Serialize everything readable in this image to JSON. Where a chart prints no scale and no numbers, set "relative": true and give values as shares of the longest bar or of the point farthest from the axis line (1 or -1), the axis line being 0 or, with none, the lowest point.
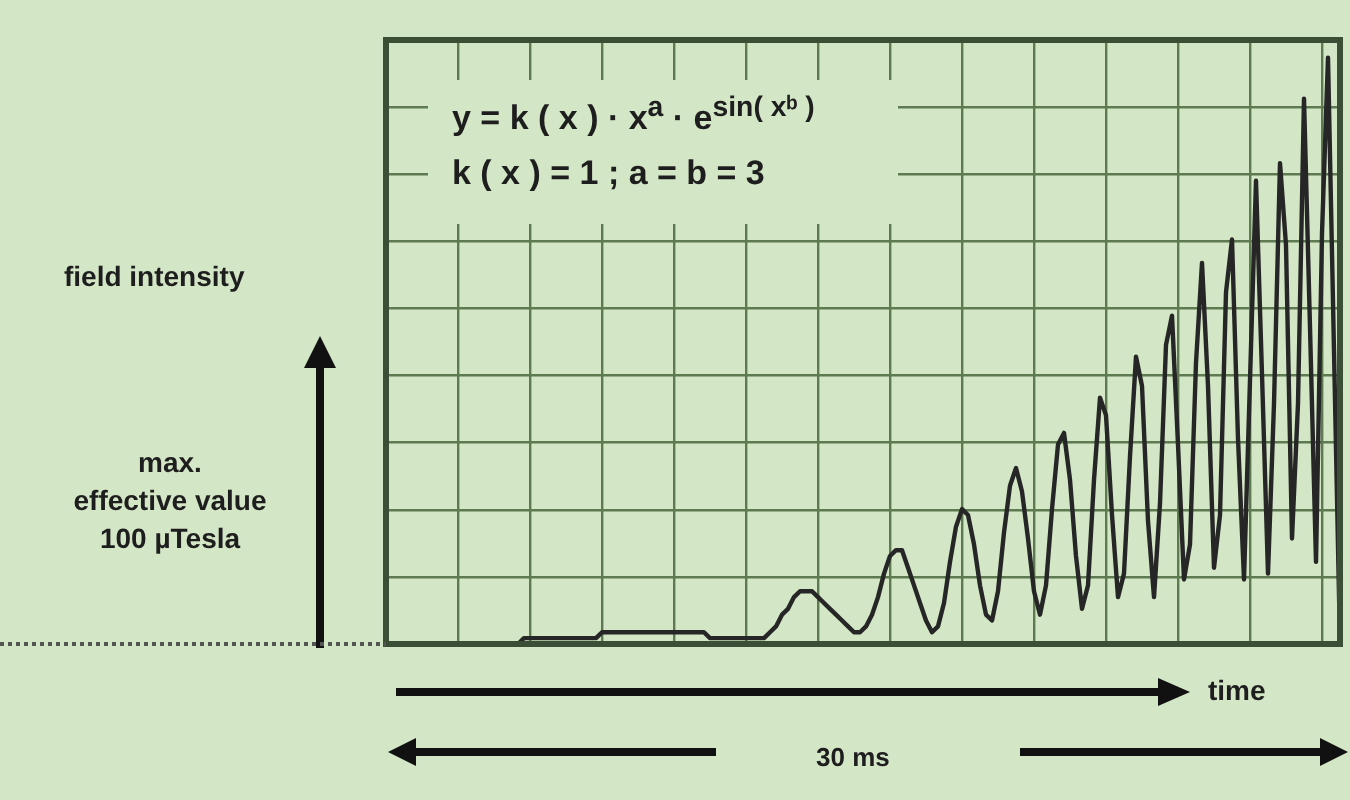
{
  "chart_data": {
    "type": "line",
    "relative": true,
    "xlabel": "time",
    "color": "#262626",
    "grid": true,
    "legend": false,
    "tick_labels": false,
    "marker": "none",
    "line_style": "solid",
    "annotations": [
      "y = k ( x ) · x$^{a}$ · e$^{sin( xᵇ )}$",
      "k ( x ) = 1 ; a = b = 3",
      "field intensity",
      "max.\neffective value\n100 µTesla",
      "30 ms"
    ],
    "categories": [
      null,
      null,
      null,
      null,
      null,
      null,
      null,
      null,
      null,
      null,
      null,
      null,
      null,
      null,
      null,
      null,
      null,
      null,
      null,
      null,
      null,
      null,
      null,
      null,
      null,
      null,
      null,
      null,
      null,
      null,
      null,
      null,
      null,
      null,
      null,
      null,
      null,
      null,
      null,
      null,
      null,
      null,
      null,
      null,
      null,
      null,
      null,
      null,
      null,
      null,
      null,
      null,
      null,
      null,
      null,
      null,
      null,
      null,
      null,
      null,
      null,
      null,
      null,
      null,
      null,
      null,
      null,
      null,
      null,
      null,
      null,
      null,
      null,
      null,
      null,
      null,
      null,
      null,
      null,
      null,
      null,
      null,
      null,
      null,
      null,
      null,
      null,
      null,
      null,
      null,
      null,
      null,
      null,
      null,
      null,
      null,
      null,
      null,
      null,
      null,
      null,
      null,
      null,
      null,
      null,
      null,
      null,
      null,
      null,
      null,
      null,
      null,
      null,
      null,
      null,
      null,
      null,
      null,
      null,
      null,
      null,
      null,
      null,
      null,
      null,
      null,
      null,
      null,
      null,
      null,
      null,
      null,
      null,
      null,
      null,
      null,
      null,
      null,
      null,
      null,
      null,
      null,
      null,
      null,
      null,
      null,
      null,
      null,
      null,
      null,
      null,
      null,
      null,
      null,
      null,
      null,
      null,
      null,
      null,
      null
    ],
    "values": [
      0,
      0,
      0,
      0,
      0,
      0,
      0,
      0,
      0,
      0,
      0,
      0,
      0,
      0,
      0,
      0,
      0,
      0,
      0,
      0,
      0,
      0,
      0,
      0.01,
      0.01,
      0.01,
      0.01,
      0.01,
      0.01,
      0.01,
      0.01,
      0.01,
      0.01,
      0.01,
      0.01,
      0.01,
      0.02,
      0.02,
      0.02,
      0.02,
      0.02,
      0.02,
      0.02,
      0.02,
      0.02,
      0.02,
      0.02,
      0.02,
      0.02,
      0.02,
      0.02,
      0.02,
      0.02,
      0.02,
      0.01,
      0.01,
      0.01,
      0.01,
      0.01,
      0.01,
      0.01,
      0.01,
      0.01,
      0.01,
      0.02,
      0.03,
      0.05,
      0.06,
      0.08,
      0.09,
      0.09,
      0.09,
      0.08,
      0.07,
      0.06,
      0.05,
      0.04,
      0.03,
      0.02,
      0.02,
      0.03,
      0.05,
      0.08,
      0.12,
      0.15,
      0.16,
      0.16,
      0.13,
      0.1,
      0.07,
      0.04,
      0.02,
      0.03,
      0.07,
      0.14,
      0.2,
      0.23,
      0.22,
      0.17,
      0.1,
      0.05,
      0.04,
      0.09,
      0.19,
      0.27,
      0.3,
      0.26,
      0.18,
      0.09,
      0.05,
      0.1,
      0.23,
      0.34,
      0.36,
      0.28,
      0.15,
      0.06,
      0.1,
      0.28,
      0.42,
      0.39,
      0.22,
      0.08,
      0.12,
      0.32,
      0.49,
      0.44,
      0.21,
      0.08,
      0.24,
      0.51,
      0.56,
      0.34,
      0.11,
      0.17,
      0.48,
      0.65,
      0.44,
      0.13,
      0.22,
      0.6,
      0.69,
      0.35,
      0.11,
      0.45,
      0.79,
      0.46,
      0.12,
      0.41,
      0.82,
      0.68,
      0.18,
      0.41,
      0.93,
      0.54,
      0.14,
      0.7,
      1.0,
      0.5,
      0
    ]
  }
}
